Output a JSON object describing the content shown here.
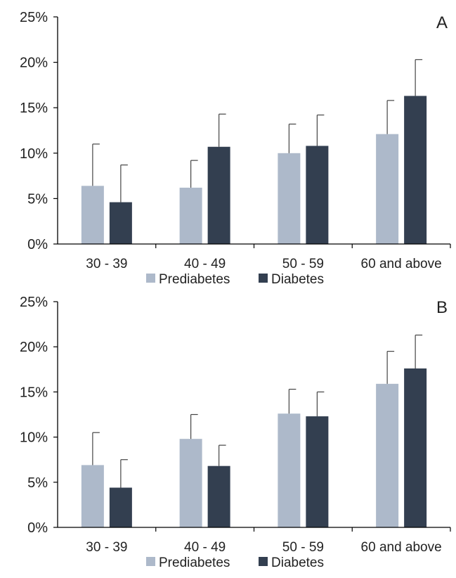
{
  "chart_data": [
    {
      "type": "bar",
      "panel_label": "A",
      "categories": [
        "30 - 39",
        "40 - 49",
        "50 - 59",
        "60 and above"
      ],
      "ylim": [
        0,
        25
      ],
      "yticks": [
        0,
        5,
        10,
        15,
        20,
        25
      ],
      "ytick_labels": [
        "0%",
        "5%",
        "10%",
        "15%",
        "20%",
        "25%"
      ],
      "legend_position": "bottom",
      "grid": false,
      "series": [
        {
          "name": "Prediabetes",
          "color": "#adb9ca",
          "values": [
            6.4,
            6.2,
            10.0,
            12.1
          ],
          "error": [
            4.6,
            3.0,
            3.2,
            3.7
          ]
        },
        {
          "name": "Diabetes",
          "color": "#333f50",
          "values": [
            4.6,
            10.7,
            10.8,
            16.3
          ],
          "error": [
            4.1,
            3.6,
            3.4,
            4.0
          ]
        }
      ]
    },
    {
      "type": "bar",
      "panel_label": "B",
      "categories": [
        "30 - 39",
        "40 - 49",
        "50 - 59",
        "60 and above"
      ],
      "ylim": [
        0,
        25
      ],
      "yticks": [
        0,
        5,
        10,
        15,
        20,
        25
      ],
      "ytick_labels": [
        "0%",
        "5%",
        "10%",
        "15%",
        "20%",
        "25%"
      ],
      "legend_position": "bottom",
      "grid": false,
      "series": [
        {
          "name": "Prediabetes",
          "color": "#adb9ca",
          "values": [
            6.9,
            9.8,
            12.6,
            15.9
          ],
          "error": [
            3.6,
            2.7,
            2.7,
            3.6
          ]
        },
        {
          "name": "Diabetes",
          "color": "#333f50",
          "values": [
            4.4,
            6.8,
            12.3,
            17.6
          ],
          "error": [
            3.1,
            2.3,
            2.7,
            3.7
          ]
        }
      ]
    }
  ]
}
